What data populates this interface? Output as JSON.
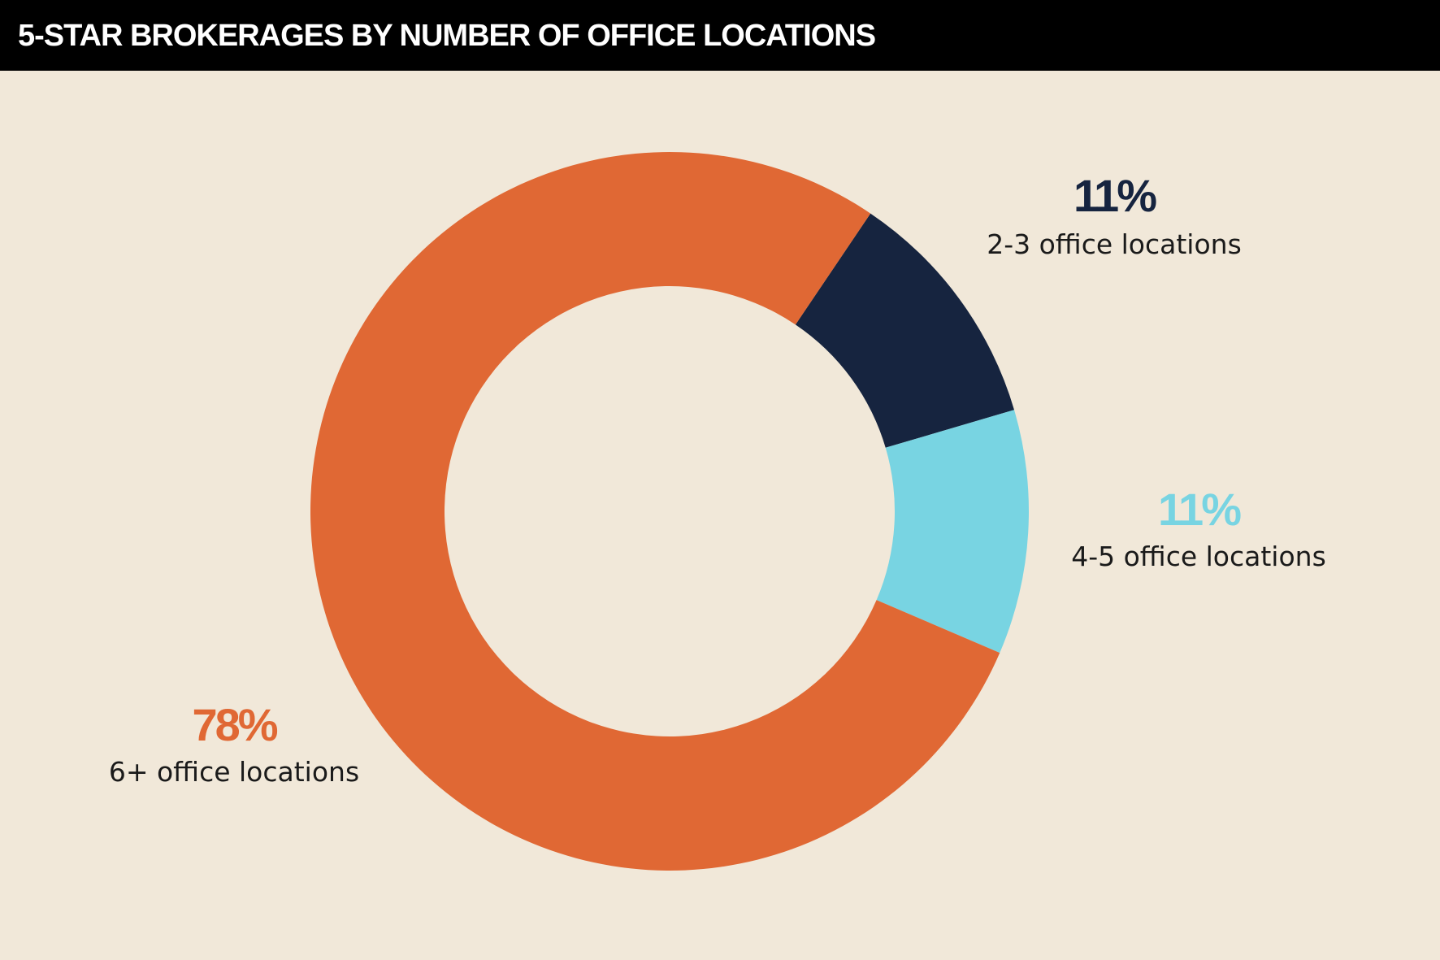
{
  "chart_data": {
    "type": "donut",
    "title": "5-STAR BROKERAGES BY NUMBER OF OFFICE LOCATIONS",
    "categories": [
      "2-3 office locations",
      "4-5 office locations",
      "6+ office locations"
    ],
    "values": [
      11,
      11,
      78
    ],
    "value_labels": [
      "11%",
      "11%",
      "78%"
    ],
    "colors": [
      "#16243f",
      "#78d4e2",
      "#e06834"
    ]
  }
}
